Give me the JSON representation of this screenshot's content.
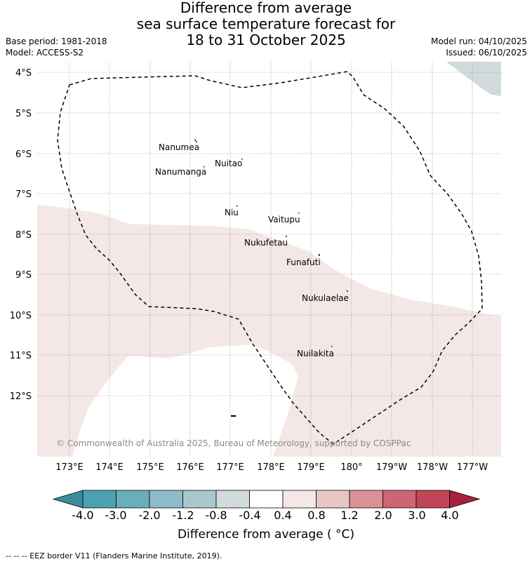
{
  "title": {
    "line1": "Difference from average",
    "line2": "sea surface temperature forecast for",
    "line3": "18 to 31 October 2025"
  },
  "meta": {
    "base_period": "Base period: 1981-2018",
    "model": "Model: ACCESS-S2",
    "model_run": "Model run: 04/10/2025",
    "issued": "Issued: 06/10/2025"
  },
  "map": {
    "lat_labels": [
      "4°S",
      "5°S",
      "6°S",
      "7°S",
      "8°S",
      "9°S",
      "10°S",
      "11°S",
      "12°S"
    ],
    "lon_labels": [
      "173°E",
      "174°E",
      "175°E",
      "176°E",
      "177°E",
      "178°E",
      "179°E",
      "180°",
      "179°W",
      "178°W",
      "177°W"
    ],
    "islands": [
      "Nanumea",
      "Nuitao",
      "Nanumanga",
      "Niu",
      "Vaitupu",
      "Nukufetau",
      "Funafuti",
      "Nukulaelae",
      "Nuilakita"
    ],
    "copyright": "© Commonwealth of Australia 2025, Bureau of Meteorology, supported by COSPPac",
    "colors": {
      "anomaly_0_4_to_0_8": "#f4e8e7",
      "anomaly_minus_0_8_to_minus_0_4": "#d1dadd",
      "ocean_neutral": "#ffffff"
    }
  },
  "colorbar": {
    "labels": [
      "-4.0",
      "-3.0",
      "-2.0",
      "-1.2",
      "-0.8",
      "-0.4",
      "0.4",
      "0.8",
      "1.2",
      "2.0",
      "3.0",
      "4.0"
    ],
    "colors": [
      "#3b8e99",
      "#4aa2b1",
      "#6aadbb",
      "#8dbcc6",
      "#a9c8cd",
      "#d1dadd",
      "#ffffff",
      "#f4e8e7",
      "#e8c7c5",
      "#d99196",
      "#cc6673",
      "#c04657",
      "#a8213f"
    ],
    "title": "Difference from average ( °C)"
  },
  "footer": "--  --  -- EEZ border V11 (Flanders Marine Institute, 2019)."
}
